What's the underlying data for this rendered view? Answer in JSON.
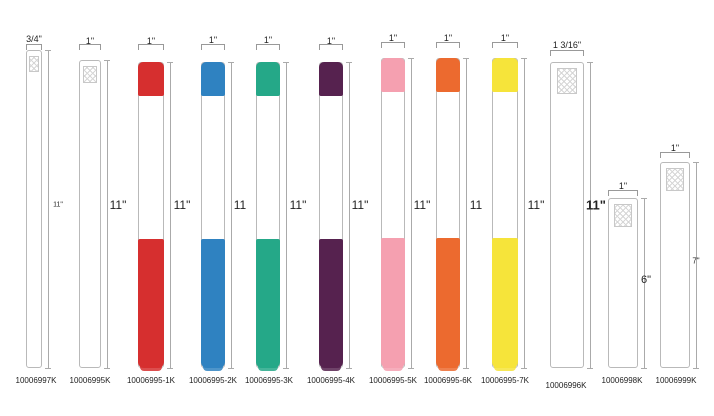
{
  "colors": {
    "red": "#d62f2f",
    "blue": "#2f82c1",
    "green": "#25a888",
    "purple": "#56224f",
    "pink": "#f5a0b0",
    "orange": "#ec6a2f",
    "yellow": "#f6e43a"
  },
  "bands": [
    {
      "width_label": "3/4\"",
      "height_label": "11\"",
      "part": "10006997K",
      "color": null
    },
    {
      "width_label": "1\"",
      "height_label": "11\"",
      "part": "10006995K",
      "color": null
    },
    {
      "width_label": "1\"",
      "height_label": "11\"",
      "part": "10006995-1K",
      "color": "red"
    },
    {
      "width_label": "1\"",
      "height_label": "11",
      "part": "10006995-2K",
      "color": "blue"
    },
    {
      "width_label": "1\"",
      "height_label": "11\"",
      "part": "10006995-3K",
      "color": "green"
    },
    {
      "width_label": "1\"",
      "height_label": "11\"",
      "part": "10006995-4K",
      "color": "purple"
    },
    {
      "width_label": "1\"",
      "height_label": "11\"",
      "part": "10006995-5K",
      "color": "pink"
    },
    {
      "width_label": "1\"",
      "height_label": "11",
      "part": "10006995-6K",
      "color": "orange"
    },
    {
      "width_label": "1\"",
      "height_label": "11\"",
      "part": "10006995-7K",
      "color": "yellow"
    },
    {
      "width_label": "1 3/16\"",
      "height_label": "11\"",
      "part": "10006996K",
      "color": null
    },
    {
      "width_label": "1\"",
      "height_label": "6\"",
      "part": "10006998K",
      "color": null
    },
    {
      "width_label": "1\"",
      "height_label": "7\"",
      "part": "10006999K",
      "color": null
    }
  ]
}
